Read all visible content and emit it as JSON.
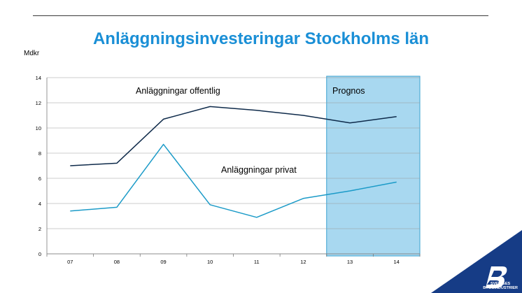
{
  "title": "Anläggningsinvesteringar Stockholms län",
  "colors": {
    "title": "#1a8fd6",
    "offentlig": "#0e2a4a",
    "privat": "#1c9bc8",
    "prognos_fill": "#a8d8f0",
    "prognos_border": "#3aa2d0",
    "grid": "#9a9a9a",
    "logo_bg": "#163c86"
  },
  "logo": {
    "line1": "SVERIGES",
    "line2": "BYGGINDUSTRIER"
  },
  "chart_data": {
    "type": "line",
    "title": "Anläggningsinvesteringar Stockholms län",
    "ylabel": "Mdkr",
    "xlabel": "",
    "categories": [
      "07",
      "08",
      "09",
      "10",
      "11",
      "12",
      "13",
      "14"
    ],
    "ylim": [
      0,
      14
    ],
    "yticks": [
      0,
      2,
      4,
      6,
      8,
      10,
      12,
      14
    ],
    "grid": true,
    "series": [
      {
        "name": "Anläggningar offentlig",
        "values": [
          7.0,
          7.2,
          10.7,
          11.7,
          11.4,
          11.0,
          10.4,
          10.9
        ]
      },
      {
        "name": "Anläggningar privat",
        "values": [
          3.4,
          3.7,
          8.7,
          3.9,
          2.9,
          4.4,
          5.0,
          5.7
        ]
      }
    ],
    "annotations": [
      {
        "text": "Prognos",
        "region_categories": [
          "13",
          "14"
        ]
      }
    ]
  }
}
